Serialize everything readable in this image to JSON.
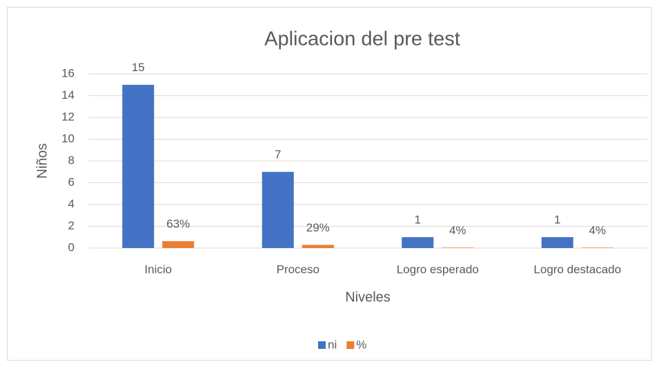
{
  "chart_data": {
    "type": "bar",
    "title": "Aplicacion del pre test",
    "y_label": "Niños",
    "x_label": "Niveles",
    "categories": [
      "Inicio",
      "Proceso",
      "Logro esperado",
      "Logro destacado"
    ],
    "series": [
      {
        "name": "ni",
        "color": "#4472c4",
        "values": [
          15,
          7,
          1,
          1
        ]
      },
      {
        "name": "%",
        "color": "#ed7d31",
        "values": [
          0.63,
          0.29,
          0.04,
          0.04
        ],
        "value_labels": [
          "63%",
          "29%",
          "4%",
          "4%"
        ]
      }
    ],
    "ylim": [
      0,
      16
    ],
    "yticks": [
      0,
      2,
      4,
      6,
      8,
      10,
      12,
      14,
      16
    ],
    "grid": true,
    "legend": "bottom"
  }
}
